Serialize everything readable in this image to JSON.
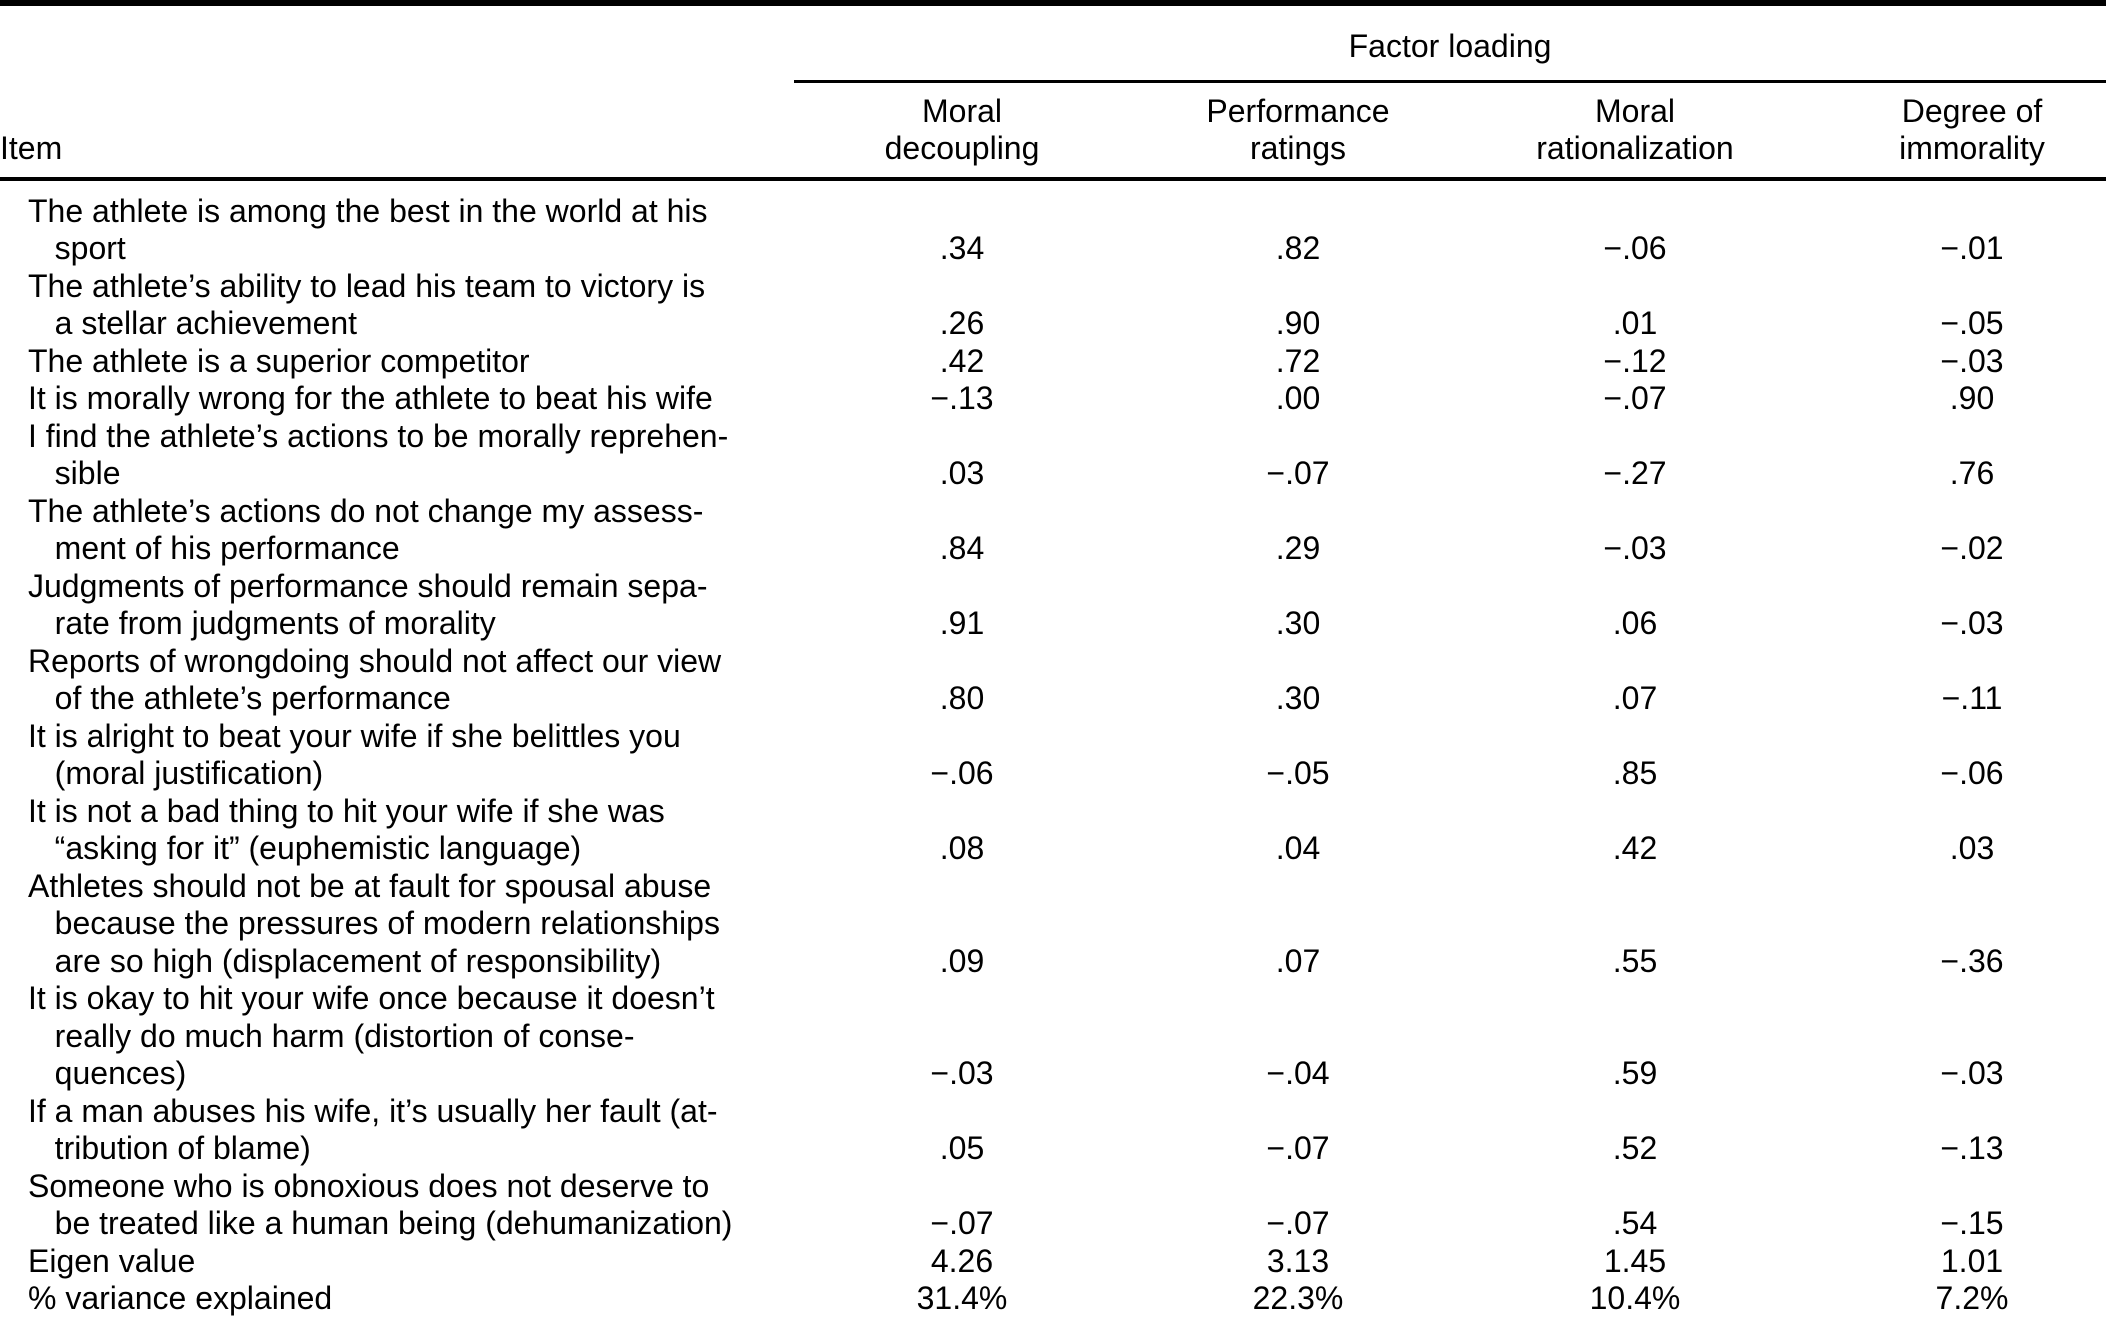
{
  "table": {
    "spanner_label": "Factor loading",
    "item_header": "Item",
    "columns": [
      [
        "Moral",
        "decoupling"
      ],
      [
        "Performance",
        "ratings"
      ],
      [
        "Moral",
        "rationalization"
      ],
      [
        "Degree of",
        "immorality"
      ]
    ],
    "rows": [
      {
        "item": [
          "The athlete is among the best in the world at his",
          "   sport"
        ],
        "values": [
          ".34",
          ".82",
          "−.06",
          "−.01"
        ]
      },
      {
        "item": [
          "The athlete’s ability to lead his team to victory is",
          "   a stellar achievement"
        ],
        "values": [
          ".26",
          ".90",
          ".01",
          "−.05"
        ]
      },
      {
        "item": [
          "The athlete is a superior competitor"
        ],
        "values": [
          ".42",
          ".72",
          "−.12",
          "−.03"
        ]
      },
      {
        "item": [
          "It is morally wrong for the athlete to beat his wife"
        ],
        "values": [
          "−.13",
          ".00",
          "−.07",
          ".90"
        ]
      },
      {
        "item": [
          "I find the athlete’s actions to be morally reprehen-",
          "   sible"
        ],
        "values": [
          ".03",
          "−.07",
          "−.27",
          ".76"
        ]
      },
      {
        "item": [
          "The athlete’s actions do not change my assess-",
          "   ment of his performance"
        ],
        "values": [
          ".84",
          ".29",
          "−.03",
          "−.02"
        ]
      },
      {
        "item": [
          "Judgments of performance should remain sepa-",
          "   rate from judgments of morality"
        ],
        "values": [
          ".91",
          ".30",
          ".06",
          "−.03"
        ]
      },
      {
        "item": [
          "Reports of wrongdoing should not affect our view",
          "   of the athlete’s performance"
        ],
        "values": [
          ".80",
          ".30",
          ".07",
          "−.11"
        ]
      },
      {
        "item": [
          "It is alright to beat your wife if she belittles you",
          "   (moral justification)"
        ],
        "values": [
          "−.06",
          "−.05",
          ".85",
          "−.06"
        ]
      },
      {
        "item": [
          "It is not a bad thing to hit your wife if she was",
          "   “asking for it” (euphemistic language)"
        ],
        "values": [
          ".08",
          ".04",
          ".42",
          ".03"
        ]
      },
      {
        "item": [
          "Athletes should not be at fault for spousal abuse",
          "   because the pressures of modern relationships",
          "   are so high (displacement of responsibility)"
        ],
        "values": [
          ".09",
          ".07",
          ".55",
          "−.36"
        ]
      },
      {
        "item": [
          "It is okay to hit your wife once because it doesn’t",
          "   really do much harm (distortion of conse-",
          "   quences)"
        ],
        "values": [
          "−.03",
          "−.04",
          ".59",
          "−.03"
        ]
      },
      {
        "item": [
          "If a man abuses his wife, it’s usually her fault (at-",
          "   tribution of blame)"
        ],
        "values": [
          ".05",
          "−.07",
          ".52",
          "−.13"
        ]
      },
      {
        "item": [
          "Someone who is obnoxious does not deserve to",
          "   be treated like a human being (dehumanization)"
        ],
        "values": [
          "−.07",
          "−.07",
          ".54",
          "−.15"
        ]
      },
      {
        "item": [
          "Eigen value"
        ],
        "values": [
          "4.26",
          "3.13",
          "1.45",
          "1.01"
        ]
      },
      {
        "item": [
          "% variance explained"
        ],
        "values": [
          "31.4%",
          "22.3%",
          "10.4%",
          "7.2%"
        ]
      }
    ]
  }
}
